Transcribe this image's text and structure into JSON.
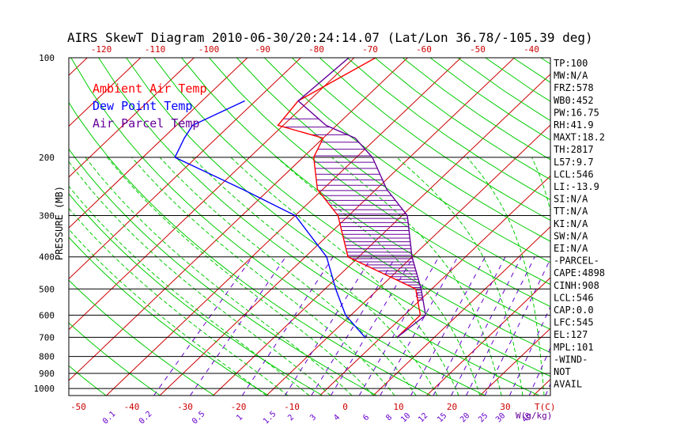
{
  "chart_data": {
    "type": "line",
    "title": "AIRS SkewT Diagram 2010-06-30/20:24:14.07 (Lat/Lon 36.78/-105.39 deg)",
    "ylabel": "PRESSURE (MB)",
    "xlabel_temp": "T(C)",
    "xlabel_mix": "W(g/kg)",
    "plim": [
      100,
      1050
    ],
    "pressure_ticks": [
      100,
      200,
      300,
      400,
      500,
      600,
      700,
      800,
      900,
      1000
    ],
    "pressure_lines": [
      200,
      300,
      400,
      500,
      600,
      700,
      800,
      900,
      1000
    ],
    "top_temp_ticks": [
      "-120",
      "-110",
      "-100",
      "-90",
      "-80",
      "-70",
      "-60",
      "-50",
      "-40"
    ],
    "bottom_temp_ticks": [
      "-50",
      "-40",
      "-30",
      "-20",
      "-10",
      "0",
      "10",
      "20",
      "30"
    ],
    "mixing_ratio_ticks": [
      "0.1",
      "0.2",
      "0.5",
      "1",
      "1.5",
      "2",
      "3",
      "4",
      "6",
      "8",
      "10",
      "12",
      "15",
      "20",
      "25",
      "30",
      "40"
    ],
    "legend": [
      {
        "name": "Ambient Air Temp",
        "color": "#ff0000"
      },
      {
        "name": "Dew Point Temp",
        "color": "#0000ff"
      },
      {
        "name": "Air Parcel Temp",
        "color": "#660099"
      }
    ],
    "colors": {
      "isotherm": "#cc0000",
      "dry_adiabat": "#00cc00",
      "moist_adiabat": "#00cc00",
      "mixing_ratio": "#6600cc",
      "pressure_line": "#000000",
      "cape_hatch": "#660099",
      "tick_labels": "#cc0000"
    },
    "series": [
      {
        "name": "Ambient Air Temp",
        "x": [
          -7,
          -7,
          -13,
          -32,
          -42,
          -51,
          -58,
          -60,
          -71,
          -72,
          -66
        ],
        "y": [
          700,
          600,
          500,
          400,
          300,
          250,
          200,
          175,
          160,
          135,
          100
        ]
      },
      {
        "name": "Dew Point Temp",
        "x": [
          -13,
          -21,
          -28,
          -36,
          -50,
          -65,
          -84,
          -86,
          -87,
          -82
        ],
        "y": [
          700,
          600,
          500,
          400,
          300,
          250,
          200,
          175,
          160,
          135
        ]
      },
      {
        "name": "Air Parcel Temp",
        "x": [
          -7,
          -6,
          -12,
          -20,
          -29,
          -38,
          -47,
          -54,
          -62,
          -72,
          -71
        ],
        "y": [
          700,
          600,
          500,
          400,
          300,
          250,
          200,
          175,
          160,
          135,
          100
        ]
      }
    ]
  },
  "stats": [
    "TP:100",
    "MW:N/A",
    "FRZ:578",
    "WB0:452",
    "PW:16.75",
    "RH:41.9",
    "MAXT:18.2",
    "TH:2817",
    "L57:9.7",
    "LCL:546",
    "LI:-13.9",
    "SI:N/A",
    "TT:N/A",
    "KI:N/A",
    "SW:N/A",
    "EI:N/A",
    "-PARCEL-",
    "CAPE:4898",
    "CINH:908",
    "LCL:546",
    "CAP:0.0",
    "LFC:545",
    "EL:127",
    "MPL:101",
    "-WIND-",
    "NOT",
    "AVAIL"
  ]
}
